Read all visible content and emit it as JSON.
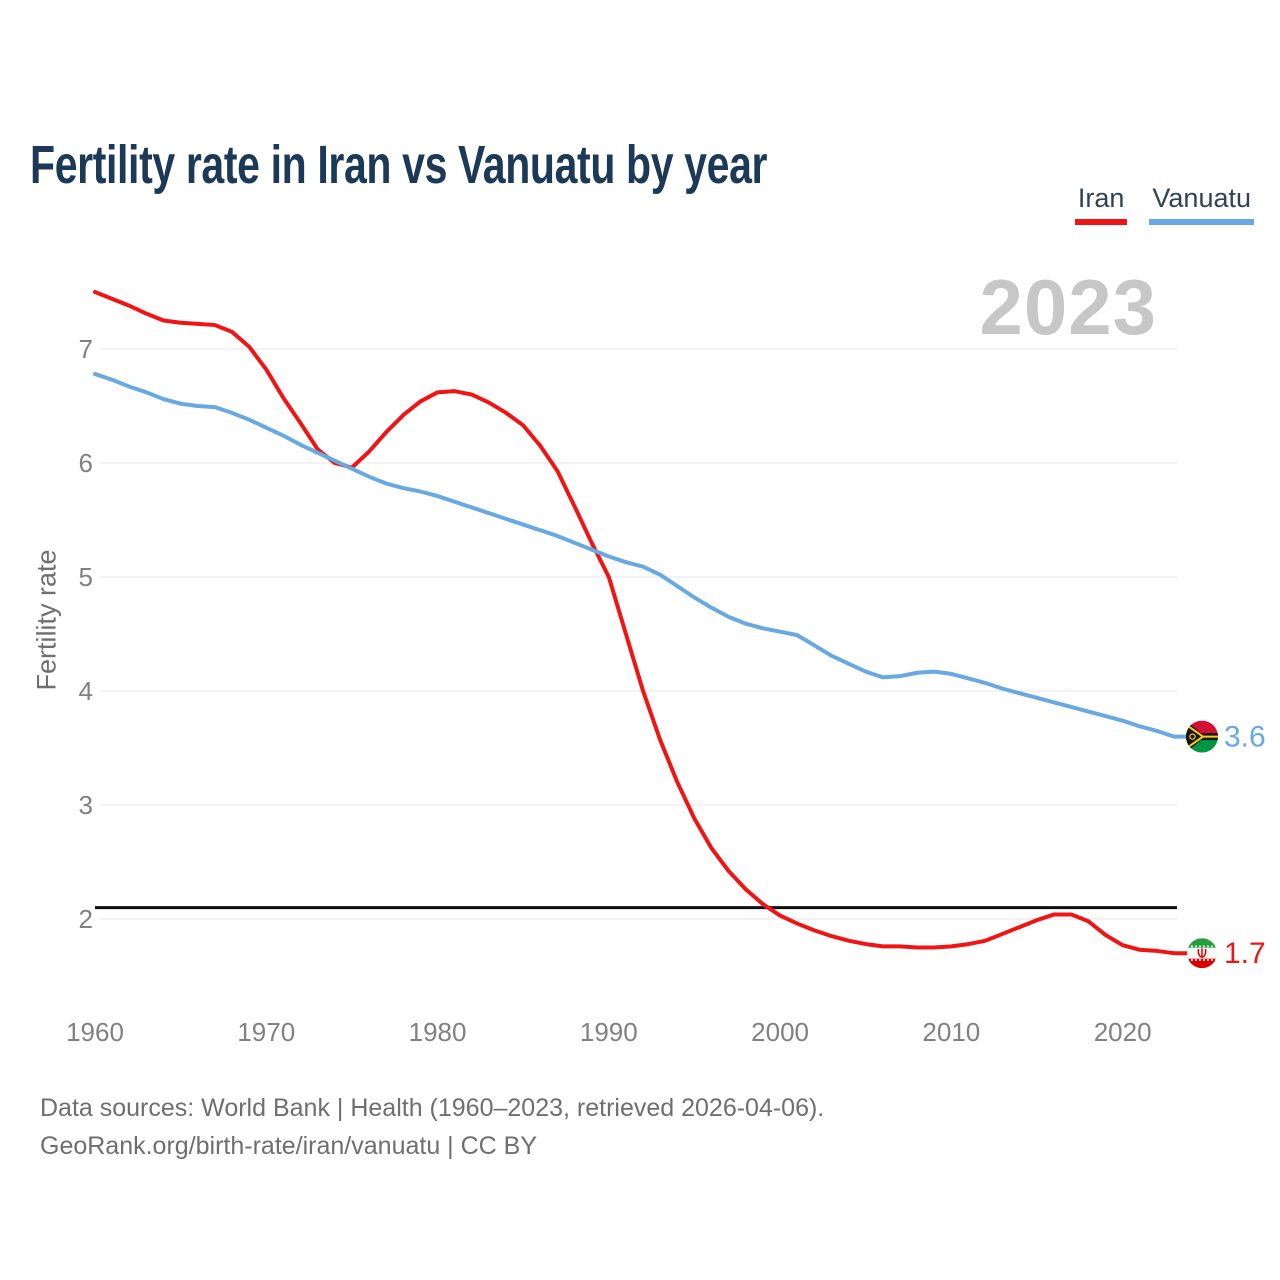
{
  "header": {
    "title": "Fertility rate in Iran vs Vanuatu by year"
  },
  "legend": [
    {
      "label": "Iran",
      "color": "#f01414"
    },
    {
      "label": "Vanuatu",
      "color": "#68a9e2"
    }
  ],
  "watermark": "2023",
  "footer": {
    "line1": "Data sources: World Bank | Health (1960–2023, retrieved 2026-04-06).",
    "line2": "GeoRank.org/birth-rate/iran/vanuatu | CC BY"
  },
  "colors": {
    "grid": "#ececec",
    "axis_text": "#818181",
    "muted_text": "#6f6f6f",
    "reference_line": "#0f0f0f",
    "iran_flag": {
      "green": "#239F40",
      "white": "#f7f7f7",
      "red": "#DA0000"
    },
    "vanuatu_flag": {
      "red": "#D21034",
      "green": "#009543",
      "black": "#141414",
      "yellow": "#FDCE12"
    }
  },
  "chart_data": {
    "type": "line",
    "title": "Fertility rate in Iran vs Vanuatu by year",
    "xlabel": "",
    "ylabel": "Fertility rate",
    "xlim": [
      1960,
      2023
    ],
    "ylim": [
      1.55,
      7.6
    ],
    "x_ticks": [
      1960,
      1970,
      1980,
      1990,
      2000,
      2010,
      2020
    ],
    "y_ticks": [
      2,
      3,
      4,
      5,
      6,
      7
    ],
    "grid": "horizontal",
    "legend_position": "top-right",
    "reference_line": {
      "value": 2.1
    },
    "x": [
      1960,
      1961,
      1962,
      1963,
      1964,
      1965,
      1966,
      1967,
      1968,
      1969,
      1970,
      1971,
      1972,
      1973,
      1974,
      1975,
      1976,
      1977,
      1978,
      1979,
      1980,
      1981,
      1982,
      1983,
      1984,
      1985,
      1986,
      1987,
      1988,
      1989,
      1990,
      1991,
      1992,
      1993,
      1994,
      1995,
      1996,
      1997,
      1998,
      1999,
      2000,
      2001,
      2002,
      2003,
      2004,
      2005,
      2006,
      2007,
      2008,
      2009,
      2010,
      2011,
      2012,
      2013,
      2014,
      2015,
      2016,
      2017,
      2018,
      2019,
      2020,
      2021,
      2022,
      2023
    ],
    "series": [
      {
        "name": "Iran",
        "color": "#f01414",
        "end_label": "1.7",
        "flag": "iran",
        "values": [
          7.5,
          7.44,
          7.38,
          7.31,
          7.25,
          7.23,
          7.22,
          7.21,
          7.15,
          7.02,
          6.82,
          6.57,
          6.35,
          6.12,
          6.0,
          5.96,
          6.1,
          6.27,
          6.42,
          6.54,
          6.62,
          6.63,
          6.6,
          6.53,
          6.44,
          6.33,
          6.15,
          5.93,
          5.62,
          5.3,
          5.0,
          4.5,
          4.0,
          3.57,
          3.2,
          2.88,
          2.62,
          2.42,
          2.26,
          2.13,
          2.03,
          1.96,
          1.9,
          1.85,
          1.81,
          1.78,
          1.76,
          1.76,
          1.75,
          1.75,
          1.76,
          1.78,
          1.81,
          1.87,
          1.93,
          1.99,
          2.04,
          2.04,
          1.98,
          1.86,
          1.77,
          1.73,
          1.72,
          1.7
        ]
      },
      {
        "name": "Vanuatu",
        "color": "#68a9e2",
        "end_label": "3.6",
        "flag": "vanuatu",
        "values": [
          6.78,
          6.73,
          6.67,
          6.62,
          6.56,
          6.52,
          6.5,
          6.49,
          6.44,
          6.38,
          6.31,
          6.24,
          6.16,
          6.09,
          6.02,
          5.95,
          5.88,
          5.82,
          5.78,
          5.75,
          5.71,
          5.66,
          5.61,
          5.56,
          5.51,
          5.46,
          5.41,
          5.36,
          5.3,
          5.24,
          5.18,
          5.13,
          5.09,
          5.02,
          4.92,
          4.82,
          4.73,
          4.65,
          4.59,
          4.55,
          4.52,
          4.49,
          4.4,
          4.31,
          4.24,
          4.17,
          4.12,
          4.13,
          4.16,
          4.17,
          4.15,
          4.11,
          4.07,
          4.02,
          3.98,
          3.94,
          3.9,
          3.86,
          3.82,
          3.78,
          3.74,
          3.69,
          3.65,
          3.6
        ]
      }
    ]
  }
}
